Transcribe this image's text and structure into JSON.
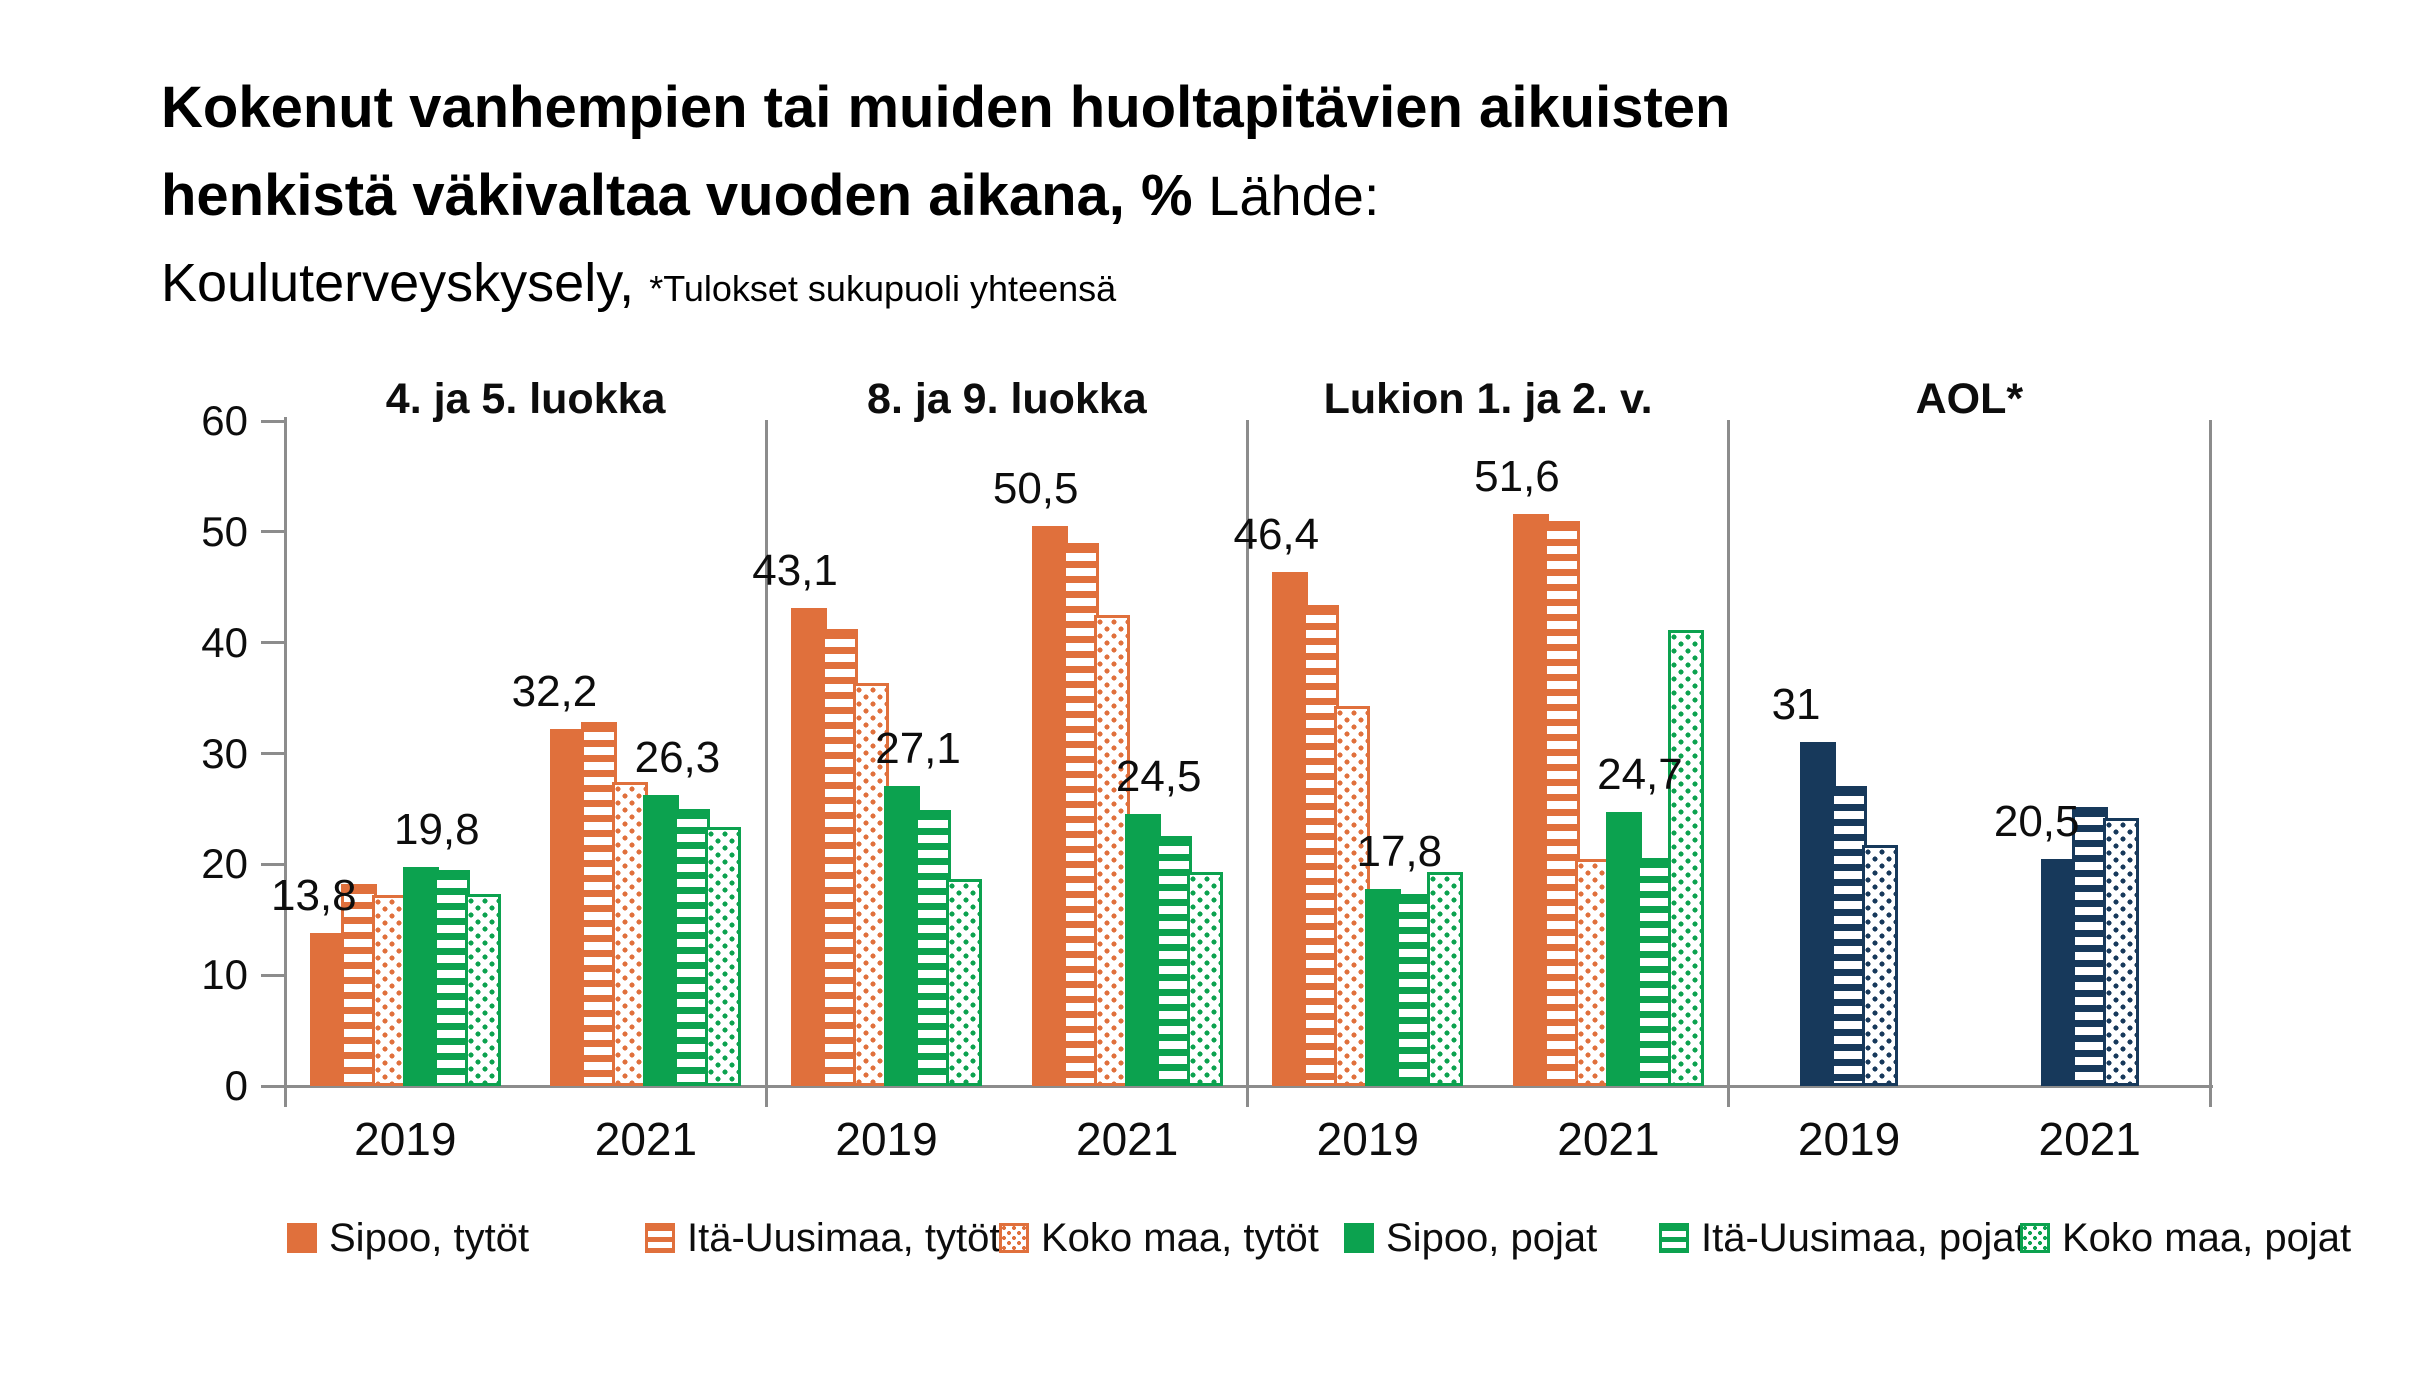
{
  "header": {
    "title_bold_1": "Kokenut vanhempien tai muiden huoltapitävien aikuisten",
    "title_bold_2": "henkistä väkivaltaa vuoden aikana, %",
    "source_label": " Lähde:",
    "source_name": "Kouluterveyskysely, ",
    "footnote": "*Tulokset sukupuoli yhteensä"
  },
  "chart_data": {
    "type": "bar",
    "title": "Kokenut vanhempien tai muiden huoltapitävien aikuisten henkistä väkivaltaa vuoden aikana, %",
    "source": "Lähde: Kouluterveyskysely",
    "footnote": "*Tulokset sukupuoli yhteensä",
    "ylim": [
      0,
      60
    ],
    "yticks": [
      "0",
      "10",
      "20",
      "30",
      "40",
      "50",
      "60"
    ],
    "grid": false,
    "legend_position": "bottom",
    "colors": {
      "tytot_orange": "#E0703C",
      "pojat_green": "#0CA24F",
      "aol_navy": "#17395B",
      "axis_gray": "#8C8C8C"
    },
    "legend": [
      {
        "label": "Sipoo, tytöt",
        "pattern": "solid",
        "color_key": "tytot_orange"
      },
      {
        "label": "Itä-Uusimaa, tytöt",
        "pattern": "hstripes",
        "color_key": "tytot_orange"
      },
      {
        "label": "Koko maa, tytöt",
        "pattern": "dots",
        "color_key": "tytot_orange"
      },
      {
        "label": "Sipoo, pojat",
        "pattern": "solid",
        "color_key": "pojat_green"
      },
      {
        "label": "Itä-Uusimaa, pojat",
        "pattern": "hstripes",
        "color_key": "pojat_green"
      },
      {
        "label": "Koko maa, pojat",
        "pattern": "dots",
        "color_key": "pojat_green"
      }
    ],
    "series_order_default": [
      "Sipoo, tytöt",
      "Itä-Uusimaa, tytöt",
      "Koko maa, tytöt",
      "Sipoo, pojat",
      "Itä-Uusimaa, pojat",
      "Koko maa, pojat"
    ],
    "series_order_aol": [
      "Sipoo",
      "Itä-Uusimaa",
      "Koko maa"
    ],
    "panels": [
      {
        "title": "4. ja 5. luokka",
        "palette": "default",
        "groups": [
          {
            "year": "2019",
            "values": [
              13.8,
              18.2,
              17.2,
              19.8,
              19.5,
              17.3
            ],
            "data_labels": [
              {
                "series": 0,
                "text": "13,8"
              },
              {
                "series": 3,
                "text": "19,8"
              }
            ]
          },
          {
            "year": "2021",
            "values": [
              32.2,
              32.8,
              27.4,
              26.3,
              25.0,
              23.4
            ],
            "data_labels": [
              {
                "series": 0,
                "text": "32,2"
              },
              {
                "series": 3,
                "text": "26,3"
              }
            ]
          }
        ]
      },
      {
        "title": "8. ja 9. luokka",
        "palette": "default",
        "groups": [
          {
            "year": "2019",
            "values": [
              43.1,
              41.2,
              36.4,
              27.1,
              24.9,
              18.7
            ],
            "data_labels": [
              {
                "series": 0,
                "text": "43,1"
              },
              {
                "series": 3,
                "text": "27,1"
              }
            ]
          },
          {
            "year": "2021",
            "values": [
              50.5,
              49.0,
              42.5,
              24.5,
              22.6,
              19.3
            ],
            "data_labels": [
              {
                "series": 0,
                "text": "50,5"
              },
              {
                "series": 3,
                "text": "24,5"
              }
            ]
          }
        ]
      },
      {
        "title": "Lukion 1. ja 2. v.",
        "palette": "default",
        "groups": [
          {
            "year": "2019",
            "values": [
              46.4,
              43.4,
              34.3,
              17.8,
              17.3,
              19.3
            ],
            "data_labels": [
              {
                "series": 0,
                "text": "46,4"
              },
              {
                "series": 3,
                "text": "17,8"
              }
            ]
          },
          {
            "year": "2021",
            "values": [
              51.6,
              51.0,
              20.5,
              24.7,
              20.6,
              41.1
            ],
            "data_labels": [
              {
                "series": 0,
                "text": "51,6"
              },
              {
                "series": 3,
                "text": "24,7"
              }
            ]
          }
        ]
      },
      {
        "title": "AOL*",
        "palette": "navy",
        "groups": [
          {
            "year": "2019",
            "values": [
              31,
              27.1,
              21.7
            ],
            "data_labels": [
              {
                "series": 0,
                "text": "31"
              }
            ]
          },
          {
            "year": "2021",
            "values": [
              20.5,
              25.2,
              24.2
            ],
            "data_labels": [
              {
                "series": 0,
                "text": "20,5"
              }
            ]
          }
        ]
      }
    ]
  }
}
